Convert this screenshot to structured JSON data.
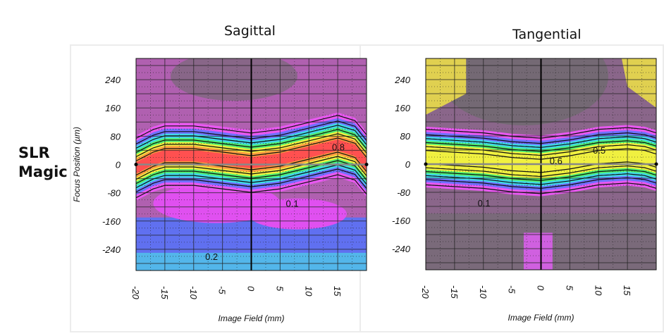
{
  "brand": {
    "line1": "SLR",
    "line2": "Magic"
  },
  "chart_data": [
    {
      "type": "heatmap",
      "title": "Sagittal",
      "xlabel": "Image Field (mm)",
      "ylabel": "Focus Position (µm)",
      "xlim": [
        -20,
        20
      ],
      "ylim": [
        -300,
        300
      ],
      "xticks": [
        -20,
        -15,
        -10,
        -5,
        0,
        5,
        10,
        15
      ],
      "yticks": [
        240,
        160,
        80,
        0,
        -80,
        -160,
        -240
      ],
      "grid": true,
      "peak_curve": [
        [
          -20,
          -10
        ],
        [
          -17,
          15
        ],
        [
          -15,
          25
        ],
        [
          -10,
          25
        ],
        [
          -5,
          15
        ],
        [
          0,
          5
        ],
        [
          5,
          15
        ],
        [
          10,
          35
        ],
        [
          15,
          55
        ],
        [
          18,
          40
        ],
        [
          20,
          0
        ]
      ],
      "peak_color": "#ff5050",
      "band_halfwidth": 80,
      "lower_region": "blue",
      "contour_labels": [
        {
          "text": "0.1",
          "x": 6,
          "y": -120
        },
        {
          "text": "0.2",
          "x": -8,
          "y": -270
        },
        {
          "text": "0.8",
          "x": 14,
          "y": 40
        }
      ]
    },
    {
      "type": "heatmap",
      "title": "Tangential",
      "xlabel": "Image Field (mm)",
      "ylabel": "",
      "xlim": [
        -20,
        20
      ],
      "ylim": [
        -300,
        300
      ],
      "xticks": [
        -20,
        -15,
        -10,
        -5,
        0,
        5,
        10,
        15
      ],
      "yticks": [
        240,
        160,
        80,
        0,
        -80,
        -160,
        -240
      ],
      "grid": true,
      "peak_curve": [
        [
          -20,
          20
        ],
        [
          -15,
          15
        ],
        [
          -10,
          10
        ],
        [
          -5,
          0
        ],
        [
          0,
          -5
        ],
        [
          5,
          5
        ],
        [
          10,
          20
        ],
        [
          15,
          25
        ],
        [
          18,
          20
        ],
        [
          20,
          10
        ]
      ],
      "peak_color": "#f0f040",
      "band_halfwidth": 75,
      "lower_region": "gray",
      "contour_labels": [
        {
          "text": "0.6",
          "x": 1.5,
          "y": 0
        },
        {
          "text": "0.1",
          "x": -11,
          "y": -120
        },
        {
          "text": "0.5",
          "x": 9,
          "y": 30
        }
      ]
    }
  ]
}
